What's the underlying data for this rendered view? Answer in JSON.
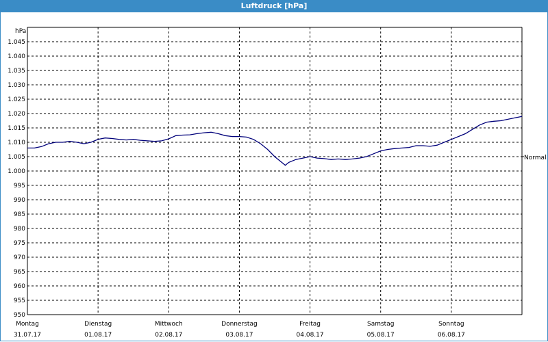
{
  "window": {
    "title": "Luftdruck [hPa]"
  },
  "chart_data": {
    "type": "line",
    "title": "Luftdruck [hPa]",
    "ylabel": "hPa",
    "ylim": [
      950,
      1050
    ],
    "yticks": [
      "1.045",
      "1.040",
      "1.035",
      "1.030",
      "1.025",
      "1.020",
      "1.015",
      "1.010",
      "1.005",
      "1.000",
      "995",
      "990",
      "985",
      "980",
      "975",
      "970",
      "965",
      "960",
      "955",
      "950"
    ],
    "ytick_values": [
      1045,
      1040,
      1035,
      1030,
      1025,
      1020,
      1015,
      1010,
      1005,
      1000,
      995,
      990,
      985,
      980,
      975,
      970,
      965,
      960,
      955,
      950
    ],
    "xlim": [
      0,
      7
    ],
    "x_categories": [
      {
        "day": "Montag",
        "date": "31.07.17"
      },
      {
        "day": "Dienstag",
        "date": "01.08.17"
      },
      {
        "day": "Mittwoch",
        "date": "02.08.17"
      },
      {
        "day": "Donnerstag",
        "date": "03.08.17"
      },
      {
        "day": "Freitag",
        "date": "04.08.17"
      },
      {
        "day": "Samstag",
        "date": "05.08.17"
      },
      {
        "day": "Sonntag",
        "date": "06.08.17"
      }
    ],
    "reference_line": {
      "label": "Normal",
      "value": 1005
    },
    "grid": true,
    "series": [
      {
        "color": "#00007a",
        "points": [
          [
            0.0,
            1008.0
          ],
          [
            0.1,
            1008.0
          ],
          [
            0.2,
            1008.5
          ],
          [
            0.3,
            1009.5
          ],
          [
            0.4,
            1010.0
          ],
          [
            0.5,
            1010.0
          ],
          [
            0.6,
            1010.3
          ],
          [
            0.7,
            1010.0
          ],
          [
            0.8,
            1009.5
          ],
          [
            0.9,
            1010.0
          ],
          [
            1.0,
            1011.0
          ],
          [
            1.1,
            1011.5
          ],
          [
            1.2,
            1011.3
          ],
          [
            1.3,
            1011.0
          ],
          [
            1.4,
            1010.8
          ],
          [
            1.5,
            1011.0
          ],
          [
            1.6,
            1010.7
          ],
          [
            1.7,
            1010.5
          ],
          [
            1.8,
            1010.3
          ],
          [
            1.9,
            1010.5
          ],
          [
            2.0,
            1011.2
          ],
          [
            2.1,
            1012.3
          ],
          [
            2.2,
            1012.5
          ],
          [
            2.3,
            1012.6
          ],
          [
            2.4,
            1013.0
          ],
          [
            2.5,
            1013.3
          ],
          [
            2.6,
            1013.5
          ],
          [
            2.7,
            1013.0
          ],
          [
            2.8,
            1012.3
          ],
          [
            2.9,
            1012.0
          ],
          [
            3.0,
            1012.0
          ],
          [
            3.1,
            1011.8
          ],
          [
            3.2,
            1011.0
          ],
          [
            3.3,
            1009.5
          ],
          [
            3.4,
            1007.5
          ],
          [
            3.5,
            1005.0
          ],
          [
            3.6,
            1003.0
          ],
          [
            3.65,
            1002.0
          ],
          [
            3.7,
            1003.0
          ],
          [
            3.8,
            1004.0
          ],
          [
            3.9,
            1004.5
          ],
          [
            4.0,
            1005.0
          ],
          [
            4.1,
            1004.5
          ],
          [
            4.2,
            1004.3
          ],
          [
            4.3,
            1004.0
          ],
          [
            4.4,
            1004.2
          ],
          [
            4.5,
            1004.0
          ],
          [
            4.6,
            1004.2
          ],
          [
            4.7,
            1004.5
          ],
          [
            4.8,
            1005.0
          ],
          [
            4.9,
            1006.0
          ],
          [
            5.0,
            1007.0
          ],
          [
            5.1,
            1007.5
          ],
          [
            5.2,
            1007.8
          ],
          [
            5.3,
            1008.0
          ],
          [
            5.4,
            1008.2
          ],
          [
            5.5,
            1008.8
          ],
          [
            5.6,
            1008.8
          ],
          [
            5.7,
            1008.6
          ],
          [
            5.8,
            1009.0
          ],
          [
            5.9,
            1010.0
          ],
          [
            6.0,
            1011.0
          ],
          [
            6.1,
            1012.0
          ],
          [
            6.2,
            1013.0
          ],
          [
            6.3,
            1014.5
          ],
          [
            6.4,
            1016.0
          ],
          [
            6.5,
            1017.0
          ],
          [
            6.6,
            1017.3
          ],
          [
            6.7,
            1017.5
          ],
          [
            6.8,
            1018.0
          ],
          [
            6.9,
            1018.5
          ],
          [
            7.0,
            1019.0
          ]
        ]
      }
    ]
  }
}
